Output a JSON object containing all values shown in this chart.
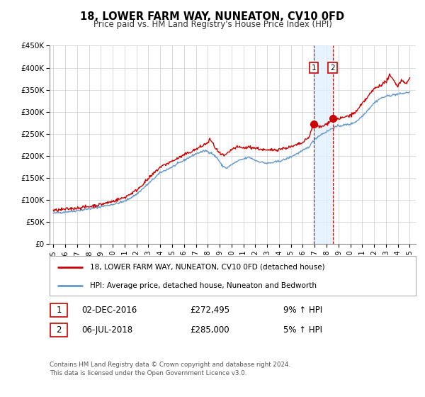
{
  "title": "18, LOWER FARM WAY, NUNEATON, CV10 0FD",
  "subtitle": "Price paid vs. HM Land Registry's House Price Index (HPI)",
  "ylim": [
    0,
    450000
  ],
  "yticks": [
    0,
    50000,
    100000,
    150000,
    200000,
    250000,
    300000,
    350000,
    400000,
    450000
  ],
  "ytick_labels": [
    "£0",
    "£50K",
    "£100K",
    "£150K",
    "£200K",
    "£250K",
    "£300K",
    "£350K",
    "£400K",
    "£450K"
  ],
  "xlim_start": 1994.7,
  "xlim_end": 2025.5,
  "xticks": [
    1995,
    1996,
    1997,
    1998,
    1999,
    2000,
    2001,
    2002,
    2003,
    2004,
    2005,
    2006,
    2007,
    2008,
    2009,
    2010,
    2011,
    2012,
    2013,
    2014,
    2015,
    2016,
    2017,
    2018,
    2019,
    2020,
    2021,
    2022,
    2023,
    2024,
    2025
  ],
  "red_line_color": "#cc0000",
  "blue_line_color": "#6699cc",
  "marker1_date": 2016.92,
  "marker1_value": 272495,
  "marker2_date": 2018.51,
  "marker2_value": 285000,
  "shaded_color": "#ddeeff",
  "vline_color": "#cc0000",
  "plot_bg_color": "#ffffff",
  "grid_color": "#cccccc",
  "legend_label_red": "18, LOWER FARM WAY, NUNEATON, CV10 0FD (detached house)",
  "legend_label_blue": "HPI: Average price, detached house, Nuneaton and Bedworth",
  "table_row1": [
    "1",
    "02-DEC-2016",
    "£272,495",
    "9% ↑ HPI"
  ],
  "table_row2": [
    "2",
    "06-JUL-2018",
    "£285,000",
    "5% ↑ HPI"
  ],
  "footer": "Contains HM Land Registry data © Crown copyright and database right 2024.\nThis data is licensed under the Open Government Licence v3.0.",
  "background_color": "#ffffff"
}
